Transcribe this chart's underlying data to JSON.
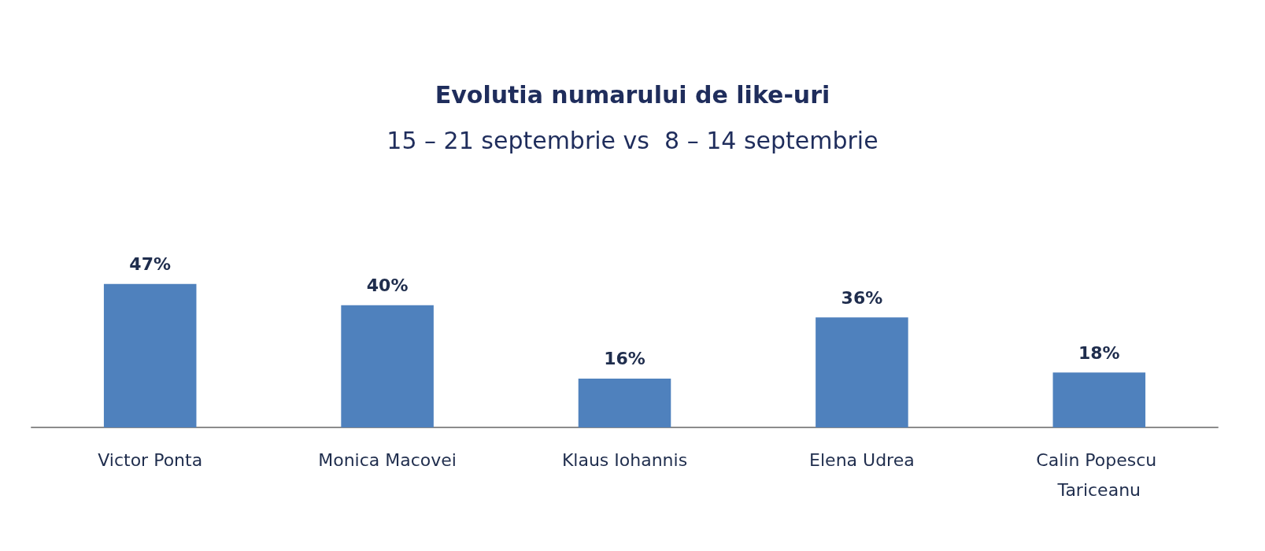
{
  "chart_data": {
    "type": "bar",
    "title": "Evolutia numarului de like-uri",
    "subtitle": "15 – 21 septembrie vs  8 – 14 septembrie",
    "categories": [
      "Victor Ponta",
      "Monica Macovei",
      "Klaus Iohannis",
      "Elena Udrea",
      "Calin Popescu Tariceanu"
    ],
    "values": [
      47,
      40,
      16,
      36,
      18
    ],
    "value_labels": [
      "47%",
      "40%",
      "16%",
      "36%",
      "18%"
    ],
    "color": "#4f81bd"
  }
}
